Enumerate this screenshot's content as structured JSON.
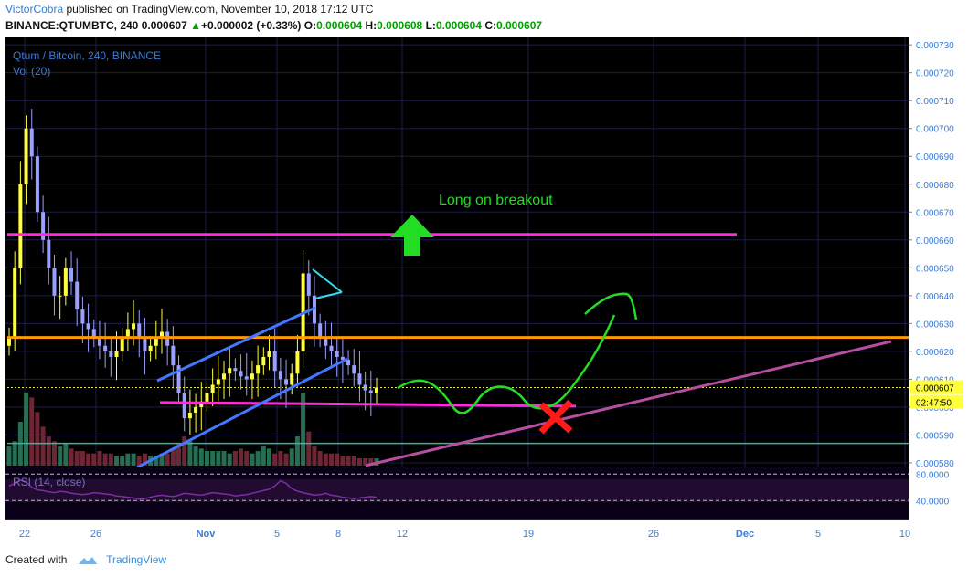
{
  "header": {
    "author": "VictorCobra",
    "published_text": "published on TradingView.com, November 10, 2018 17:12 UTC",
    "symbol": "BINANCE:QTUMBTC, 240",
    "price": "0.000607",
    "change": "+0.000002 (+0.33%)",
    "o_label": "O:",
    "o_value": "0.000604",
    "h_label": "H:",
    "h_value": "0.000608",
    "l_label": "L:",
    "l_value": "0.000604",
    "c_label": "C:",
    "c_value": "0.000607"
  },
  "chart_data": {
    "type": "candlestick",
    "title": "Qtum / Bitcoin, 240, BINANCE",
    "volume_label": "Vol (20)",
    "y_ticks": [
      "0.000730",
      "0.000720",
      "0.000710",
      "0.000700",
      "0.000690",
      "0.000680",
      "0.000670",
      "0.000660",
      "0.000650",
      "0.000640",
      "0.000630",
      "0.000620",
      "0.000610",
      "0.000600",
      "0.000590",
      "0.000580"
    ],
    "ylim": [
      0.000579,
      0.000733
    ],
    "x_ticks": [
      "22",
      "26",
      "Nov",
      "5",
      "8",
      "12",
      "19",
      "26",
      "Dec",
      "5",
      "10"
    ],
    "last_price_label": "0.000607",
    "countdown_label": "02:47:50",
    "annotation": "Long on breakout",
    "resistance_level": 0.000662,
    "mid_level": 0.000625,
    "support_level": 0.000601,
    "close_series": [
      0.000625,
      0.00065,
      0.00068,
      0.0007,
      0.00069,
      0.00067,
      0.00066,
      0.00065,
      0.00064,
      0.00064,
      0.00065,
      0.000645,
      0.000635,
      0.00063,
      0.000628,
      0.000625,
      0.000622,
      0.00062,
      0.000618,
      0.00062,
      0.000625,
      0.000628,
      0.00063,
      0.000625,
      0.00062,
      0.000622,
      0.000625,
      0.000627,
      0.000622,
      0.000615,
      0.000605,
      0.000596,
      0.000598,
      0.0006,
      0.000602,
      0.000605,
      0.000608,
      0.00061,
      0.000612,
      0.000614,
      0.000613,
      0.000611,
      0.00061,
      0.000612,
      0.000615,
      0.000618,
      0.00062,
      0.000613,
      0.00061,
      0.000608,
      0.000612,
      0.00062,
      0.000648,
      0.00064,
      0.00063,
      0.000625,
      0.000622,
      0.00062,
      0.000618,
      0.000617,
      0.000615,
      0.000612,
      0.000608,
      0.000606,
      0.000605,
      0.000607
    ],
    "rsi": {
      "label": "RSI (14, close)",
      "ticks": [
        "80.0000",
        "40.0000"
      ],
      "values": [
        62,
        66,
        71,
        68,
        60,
        56,
        55,
        53,
        52,
        54,
        53,
        51,
        50,
        49,
        50,
        52,
        51,
        50,
        49,
        47,
        46,
        45,
        44,
        42,
        43,
        45,
        47,
        48,
        47,
        46,
        48,
        51,
        50,
        49,
        48,
        50,
        52,
        51,
        50,
        49,
        47,
        48,
        49,
        51,
        53,
        55,
        57,
        62,
        70,
        66,
        58,
        54,
        52,
        50,
        48,
        49,
        51,
        48,
        47,
        45,
        44,
        43,
        44,
        45,
        46,
        45
      ]
    },
    "volume": [
      8,
      10,
      18,
      30,
      28,
      22,
      16,
      12,
      10,
      8,
      9,
      7,
      6,
      6,
      5,
      5,
      6,
      5,
      5,
      4,
      4,
      5,
      5,
      4,
      5,
      4,
      4,
      5,
      5,
      7,
      9,
      12,
      10,
      8,
      7,
      6,
      6,
      6,
      6,
      5,
      6,
      7,
      6,
      5,
      6,
      8,
      7,
      5,
      6,
      5,
      7,
      12,
      30,
      14,
      8,
      6,
      5,
      5,
      5,
      4,
      4,
      4,
      3,
      3,
      3,
      3
    ],
    "colors": {
      "background": "#000000",
      "up_candle": "#ffff3d",
      "down_candle": "#9aa0ff",
      "resistance": "#ff2bd8",
      "mid_line": "#ff9900",
      "channel": "#4477ff",
      "trend": "#b64fa0",
      "arrow": "#22dd22",
      "cross": "#ff1a1a",
      "rsi_line": "#7b2ea6",
      "grid": "#1c1c4a"
    }
  },
  "footer": {
    "created_with": "Created with",
    "brand": "TradingView"
  }
}
